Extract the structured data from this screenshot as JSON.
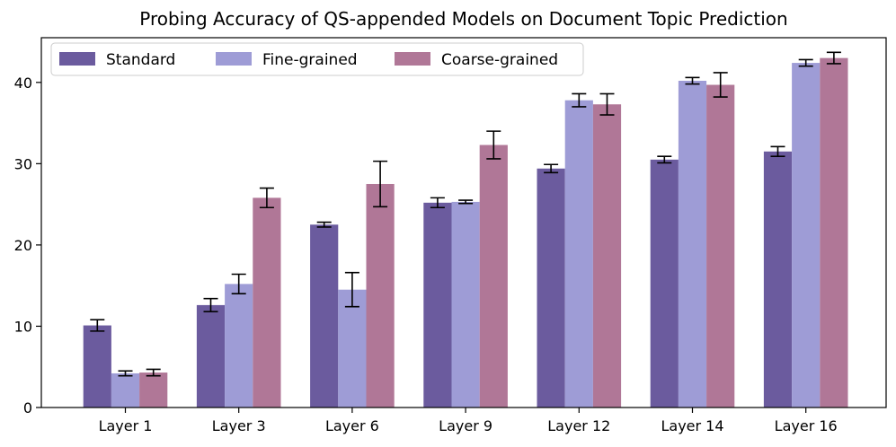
{
  "chart_data": {
    "type": "bar",
    "title": "Probing Accuracy of QS-appended Models on Document Topic Prediction",
    "xlabel": "",
    "ylabel": "",
    "ylim": [
      0,
      45.5
    ],
    "yticks": [
      0,
      10,
      20,
      30,
      40
    ],
    "categories": [
      "Layer 1",
      "Layer 3",
      "Layer 6",
      "Layer 9",
      "Layer 12",
      "Layer 14",
      "Layer 16"
    ],
    "legend_position": "top-left",
    "series": [
      {
        "name": "Standard",
        "color": "#6b5b9e",
        "values": [
          10.1,
          12.6,
          22.5,
          25.2,
          29.4,
          30.5,
          31.5
        ],
        "errors": [
          0.7,
          0.8,
          0.3,
          0.6,
          0.5,
          0.4,
          0.6
        ]
      },
      {
        "name": "Fine-grained",
        "color": "#9e9cd6",
        "values": [
          4.2,
          15.2,
          14.5,
          25.3,
          37.8,
          40.2,
          42.4
        ],
        "errors": [
          0.3,
          1.2,
          2.1,
          0.2,
          0.8,
          0.4,
          0.4
        ]
      },
      {
        "name": "Coarse-grained",
        "color": "#b07797",
        "values": [
          4.3,
          25.8,
          27.5,
          32.3,
          37.3,
          39.7,
          43.0
        ],
        "errors": [
          0.4,
          1.2,
          2.8,
          1.7,
          1.3,
          1.5,
          0.7
        ]
      }
    ]
  }
}
